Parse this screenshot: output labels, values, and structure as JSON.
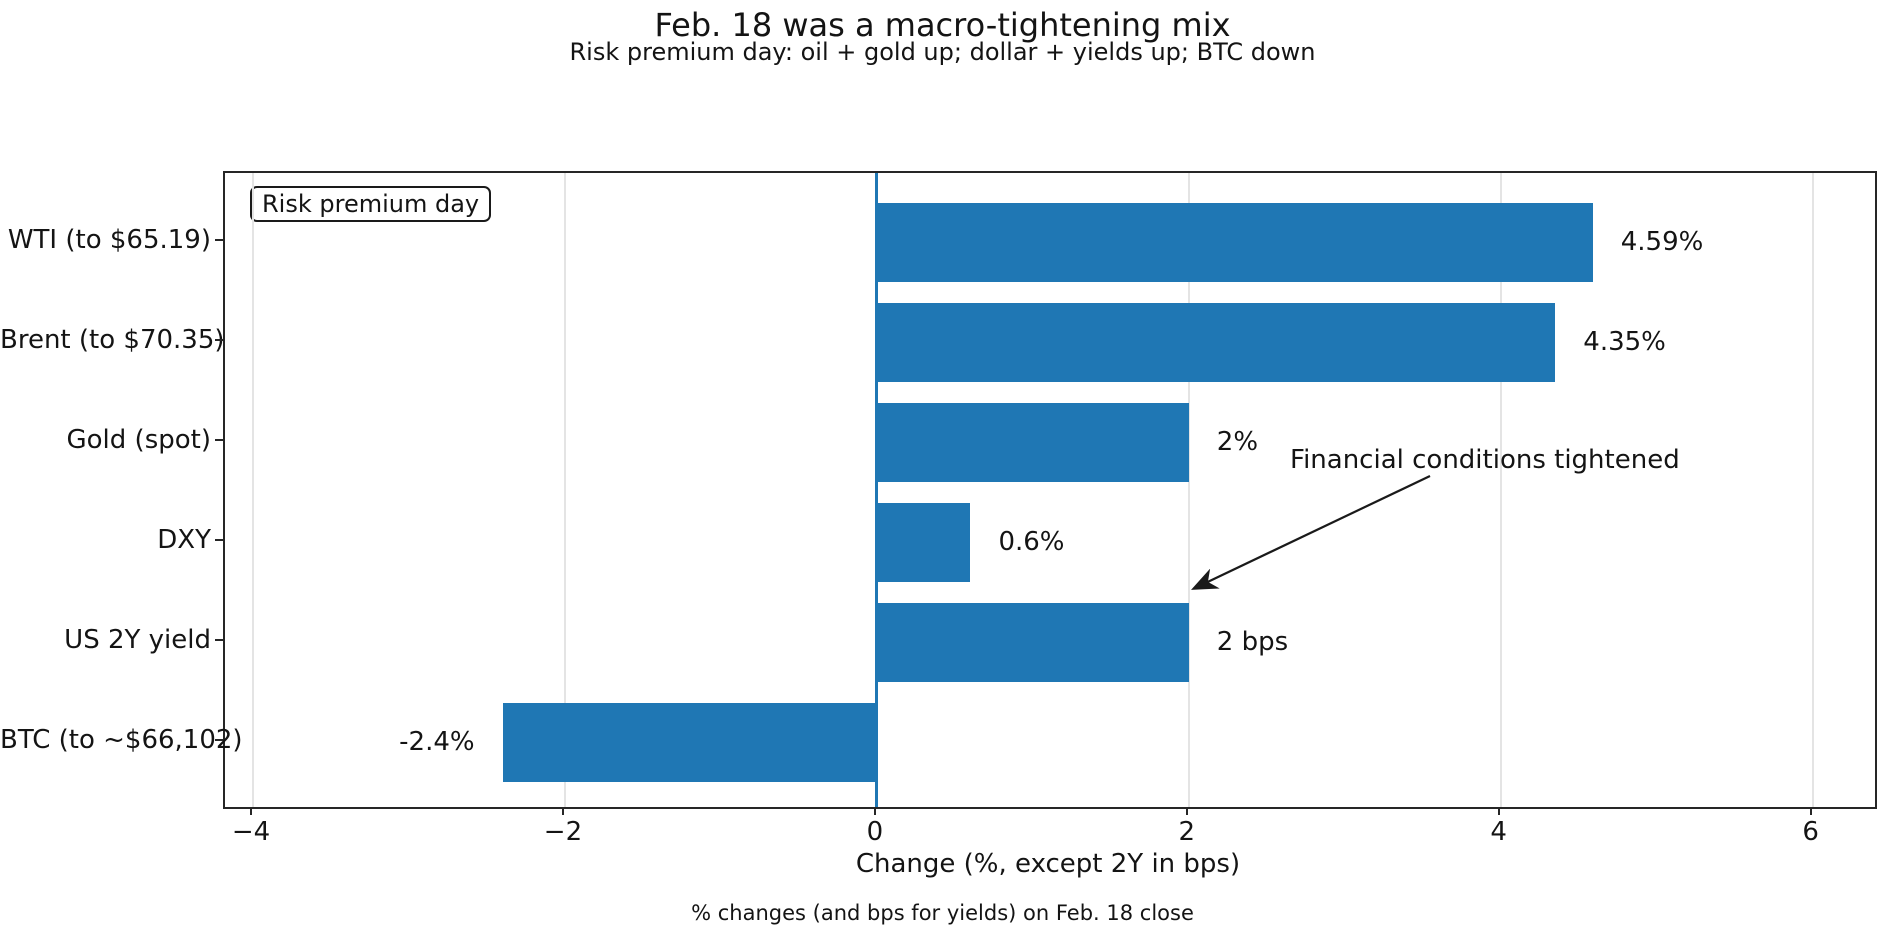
{
  "chart_data": {
    "type": "bar",
    "orientation": "horizontal",
    "title": "Feb. 18 was a macro-tightening mix",
    "subtitle": "Risk premium day: oil + gold up; dollar + yields up; BTC down",
    "footer": "% changes (and bps for yields) on Feb. 18 close",
    "categories": [
      "WTI (to $65.19)",
      "Brent (to $70.35)",
      "Gold (spot)",
      "DXY",
      "US 2Y yield",
      "BTC (to ~$66,102)"
    ],
    "values": [
      4.59,
      4.35,
      2,
      0.6,
      2,
      -2.4
    ],
    "value_labels": [
      "4.59%",
      "4.35%",
      "2%",
      "0.6%",
      "2 bps",
      "-2.4%"
    ],
    "xlabel": "Change (%, except 2Y in bps)",
    "xticks": [
      -4,
      -2,
      0,
      2,
      4,
      6
    ],
    "xtick_labels": [
      "−4",
      "−2",
      "0",
      "2",
      "4",
      "6"
    ],
    "xlim": [
      -4.18,
      6.4
    ],
    "grid": true,
    "zero_line_at": 0,
    "legend_position": "none",
    "annotations": {
      "box_label": "Risk premium day",
      "arrow_text": "Financial conditions tightened"
    }
  },
  "colors": {
    "bar": "#1f77b4",
    "zero_line": "#1f77b4",
    "grid": "#e4e4e4",
    "axis": "#262626",
    "text": "#141414"
  }
}
